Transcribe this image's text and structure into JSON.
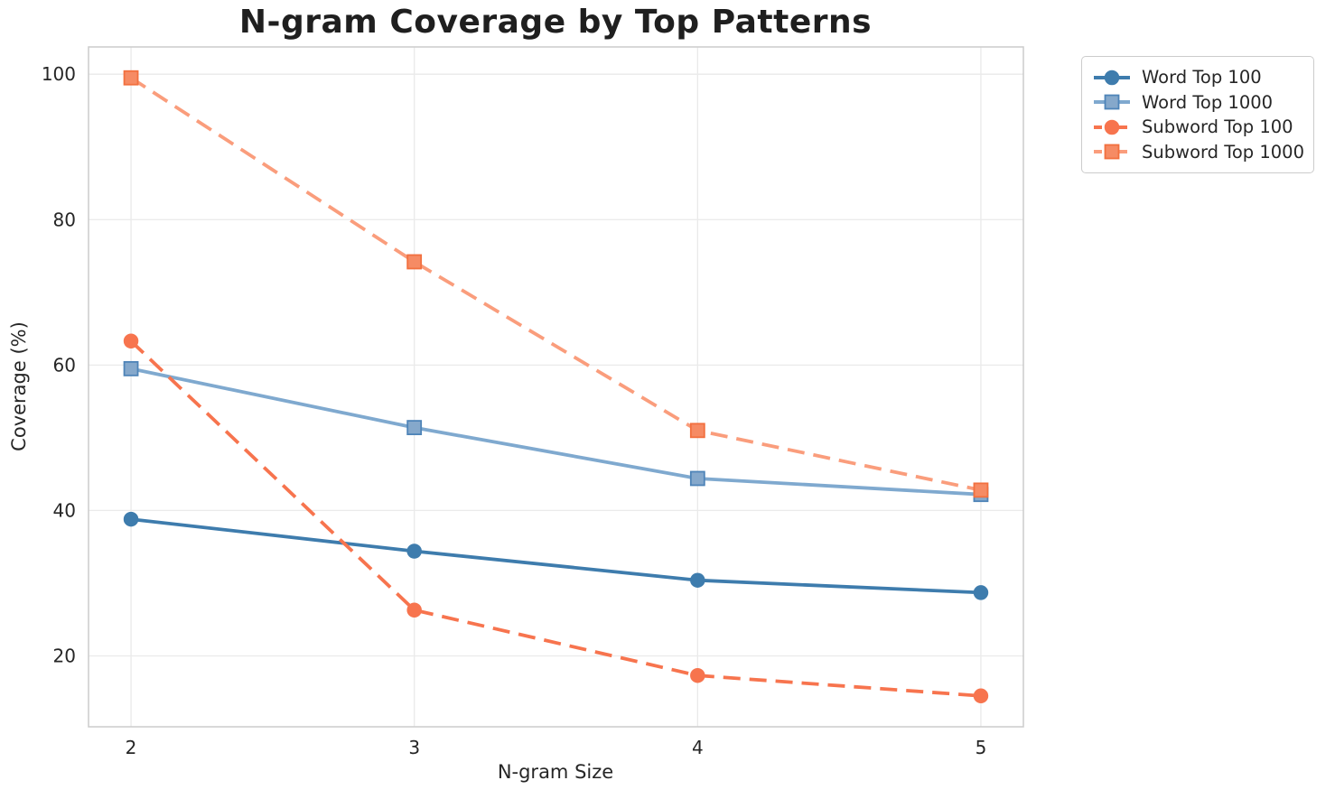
{
  "figure": {
    "title": "N-gram Coverage by Top Patterns",
    "xlabel": "N-gram Size",
    "ylabel": "Coverage (%)"
  },
  "chart_data": {
    "type": "line",
    "title": "N-gram Coverage by Top Patterns",
    "xlabel": "N-gram Size",
    "ylabel": "Coverage (%)",
    "x": [
      2,
      3,
      4,
      5
    ],
    "xticks": [
      2,
      3,
      4,
      5
    ],
    "yticks": [
      20,
      40,
      60,
      80,
      100
    ],
    "xlim": [
      1.85,
      5.15
    ],
    "ylim": [
      10.25,
      103.75
    ],
    "grid": true,
    "legend_position": "outside-upper-right",
    "series": [
      {
        "name": "Word Top 100",
        "values": [
          38.8,
          34.4,
          30.4,
          28.7
        ],
        "color": "#3E7CAD",
        "marker": "circle",
        "marker_fill": "#3E7CAD",
        "marker_edge": "#3E7CAD",
        "dashed": false
      },
      {
        "name": "Word Top 1000",
        "values": [
          59.5,
          51.4,
          44.4,
          42.2
        ],
        "color": "#7FA9CF",
        "marker": "square",
        "marker_fill": "#85A8CB",
        "marker_edge": "#4E84B8",
        "dashed": false
      },
      {
        "name": "Subword Top 100",
        "values": [
          63.3,
          26.3,
          17.3,
          14.5
        ],
        "color": "#F7744E",
        "marker": "circle",
        "marker_fill": "#F7744E",
        "marker_edge": "#F7744E",
        "dashed": true
      },
      {
        "name": "Subword Top 1000",
        "values": [
          99.5,
          74.2,
          51.0,
          42.8
        ],
        "color": "#FA9D7C",
        "marker": "square",
        "marker_fill": "#F68B64",
        "marker_edge": "#F2703F",
        "dashed": true
      }
    ],
    "style": {
      "grid_color": "#eaeaea",
      "spine_color": "#cccccc",
      "tick_label_color": "#262626",
      "title_color": "#1f1f1f",
      "background": "#ffffff"
    }
  }
}
